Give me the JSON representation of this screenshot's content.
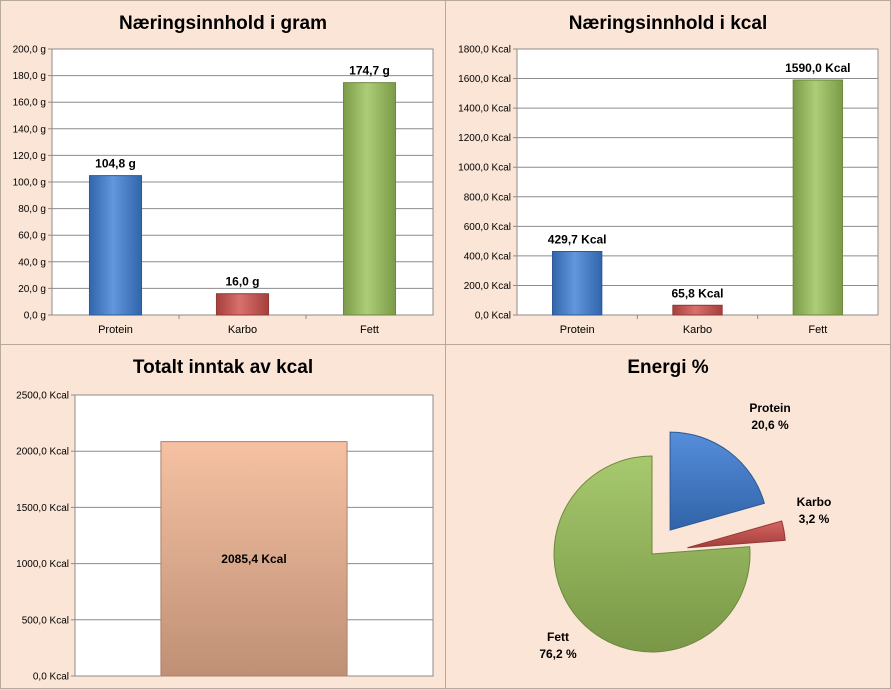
{
  "chart_data": [
    {
      "type": "bar",
      "title": "Næringsinnhold  i gram",
      "categories": [
        "Protein",
        "Karbo",
        "Fett"
      ],
      "values": [
        104.8,
        16.0,
        174.7
      ],
      "value_labels": [
        "104,8 g",
        "16,0 g",
        "174,7 g"
      ],
      "ylim": [
        0,
        200
      ],
      "yticks": [
        "0,0 g",
        "20,0 g",
        "40,0 g",
        "60,0 g",
        "80,0 g",
        "100,0 g",
        "120,0 g",
        "140,0 g",
        "160,0 g",
        "180,0 g",
        "200,0 g"
      ],
      "colors": [
        "#3f7fd6",
        "#d0504c",
        "#9bc25a"
      ],
      "grid": true
    },
    {
      "type": "bar",
      "title": "Næringsinnhold  i kcal",
      "categories": [
        "Protein",
        "Karbo",
        "Fett"
      ],
      "values": [
        429.7,
        65.8,
        1590.0
      ],
      "value_labels": [
        "429,7 Kcal",
        "65,8 Kcal",
        "1590,0 Kcal"
      ],
      "ylim": [
        0,
        1800
      ],
      "yticks": [
        "0,0 Kcal",
        "200,0 Kcal",
        "400,0 Kcal",
        "600,0 Kcal",
        "800,0 Kcal",
        "1000,0 Kcal",
        "1200,0 Kcal",
        "1400,0 Kcal",
        "1600,0 Kcal",
        "1800,0 Kcal"
      ],
      "colors": [
        "#3f7fd6",
        "#d0504c",
        "#9bc25a"
      ],
      "grid": true
    },
    {
      "type": "bar",
      "title": "Totalt  inntak av kcal",
      "categories": [
        ""
      ],
      "values": [
        2085.4
      ],
      "value_labels": [
        "2085,4 Kcal"
      ],
      "ylim": [
        0,
        2500
      ],
      "yticks": [
        "0,0 Kcal",
        "500,0 Kcal",
        "1000,0 Kcal",
        "1500,0 Kcal",
        "2000,0 Kcal",
        "2500,0 Kcal"
      ],
      "colors": [
        "#f5b896"
      ],
      "grid": true
    },
    {
      "type": "pie",
      "title": "Energi %",
      "labels": [
        "Protein",
        "Karbo",
        "Fett"
      ],
      "values": [
        20.6,
        3.2,
        76.2
      ],
      "value_labels": [
        "20,6 %",
        "3,2 %",
        "76,2 %"
      ],
      "colors": [
        "#3f7fd6",
        "#d0504c",
        "#9bc25a"
      ],
      "exploded": true
    }
  ]
}
